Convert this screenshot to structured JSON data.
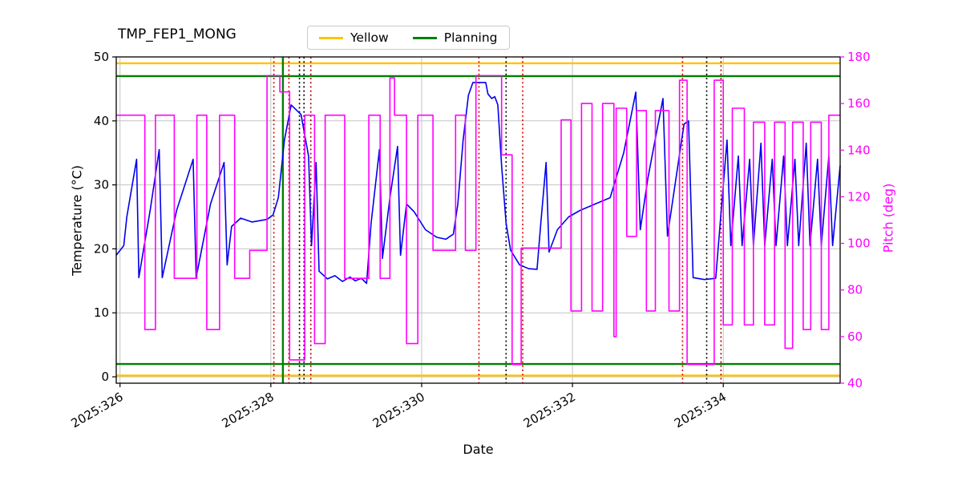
{
  "window": {
    "background": "#ffffff"
  },
  "chart_data": {
    "type": "line",
    "title": "TMP_FEP1_MONG",
    "xlabel": "Date",
    "ylabel_left": "Temperature (°C)",
    "ylabel_right": "Pitch (deg)",
    "xlim": [
      325.95,
      335.55
    ],
    "ylim_left": [
      -1,
      50
    ],
    "ylim_right": [
      40,
      180
    ],
    "grid": true,
    "legend_position": "upper center",
    "colors": {
      "temperature": "#0000EE",
      "pitch": "#FF00FF",
      "yellow_limit": "#FFC400",
      "planning_limit": "#008000",
      "grid": "#C3C3C3",
      "frame": "#000000"
    },
    "xticks": {
      "values": [
        326,
        328,
        330,
        332,
        334
      ],
      "labels": [
        "2025:326",
        "2025:328",
        "2025:330",
        "2025:332",
        "2025:334"
      ]
    },
    "yticks_left": [
      0,
      10,
      20,
      30,
      40,
      50
    ],
    "yticks_right": [
      40,
      60,
      80,
      100,
      120,
      140,
      160,
      180
    ],
    "legend": [
      {
        "label": "Yellow",
        "color": "#FFC400"
      },
      {
        "label": "Planning",
        "color": "#008000"
      }
    ],
    "hlines": [
      {
        "y": 49,
        "color": "#FFC400",
        "name": "yellow-high"
      },
      {
        "y": 0.2,
        "color": "#FFC400",
        "name": "yellow-low"
      },
      {
        "y": 47,
        "color": "#008000",
        "name": "planning-high"
      },
      {
        "y": 2,
        "color": "#008000",
        "name": "planning-low"
      }
    ],
    "vlines": [
      {
        "x": 328.04,
        "color": "#DD0000",
        "style": "dotted"
      },
      {
        "x": 328.16,
        "color": "#008000",
        "style": "solid"
      },
      {
        "x": 328.24,
        "color": "#DD0000",
        "style": "dotted"
      },
      {
        "x": 328.38,
        "color": "#000000",
        "style": "dotted"
      },
      {
        "x": 328.44,
        "color": "#000000",
        "style": "dotted"
      },
      {
        "x": 328.53,
        "color": "#A00000",
        "style": "dotted"
      },
      {
        "x": 330.76,
        "color": "#DD0000",
        "style": "dotted"
      },
      {
        "x": 331.12,
        "color": "#000000",
        "style": "dotted"
      },
      {
        "x": 331.34,
        "color": "#DD0000",
        "style": "dotted"
      },
      {
        "x": 333.46,
        "color": "#DD0000",
        "style": "dotted"
      },
      {
        "x": 333.78,
        "color": "#000000",
        "style": "dotted"
      },
      {
        "x": 333.97,
        "color": "#A00000",
        "style": "dotted"
      }
    ],
    "series": [
      {
        "name": "Temperature",
        "axis": "left",
        "color": "#0000EE",
        "style": "line",
        "points": [
          [
            325.95,
            19
          ],
          [
            326.05,
            20.5
          ],
          [
            326.09,
            25
          ],
          [
            326.22,
            34
          ],
          [
            326.25,
            15.5
          ],
          [
            326.4,
            26
          ],
          [
            326.52,
            35.5
          ],
          [
            326.56,
            15.5
          ],
          [
            326.75,
            26
          ],
          [
            326.97,
            34
          ],
          [
            327.01,
            15.5
          ],
          [
            327.2,
            27
          ],
          [
            327.38,
            33.5
          ],
          [
            327.42,
            17.5
          ],
          [
            327.48,
            23.5
          ],
          [
            327.6,
            24.8
          ],
          [
            327.75,
            24.2
          ],
          [
            327.95,
            24.6
          ],
          [
            328.03,
            25.3
          ],
          [
            328.1,
            28
          ],
          [
            328.18,
            37
          ],
          [
            328.27,
            42.5
          ],
          [
            328.4,
            41
          ],
          [
            328.5,
            34.5
          ],
          [
            328.54,
            20.5
          ],
          [
            328.6,
            33.5
          ],
          [
            328.64,
            16.5
          ],
          [
            328.75,
            15.3
          ],
          [
            328.85,
            15.8
          ],
          [
            328.95,
            14.9
          ],
          [
            329.05,
            15.6
          ],
          [
            329.12,
            15
          ],
          [
            329.2,
            15.4
          ],
          [
            329.27,
            14.6
          ],
          [
            329.33,
            24
          ],
          [
            329.44,
            35.5
          ],
          [
            329.48,
            18.5
          ],
          [
            329.58,
            28
          ],
          [
            329.68,
            36
          ],
          [
            329.72,
            19
          ],
          [
            329.8,
            27
          ],
          [
            329.9,
            25.8
          ],
          [
            330.05,
            23
          ],
          [
            330.2,
            21.8
          ],
          [
            330.32,
            21.5
          ],
          [
            330.42,
            22.3
          ],
          [
            330.48,
            27
          ],
          [
            330.55,
            37
          ],
          [
            330.62,
            44
          ],
          [
            330.68,
            46
          ],
          [
            330.85,
            46
          ],
          [
            330.88,
            44.2
          ],
          [
            330.93,
            43.5
          ],
          [
            330.97,
            43.8
          ],
          [
            331.01,
            42.5
          ],
          [
            331.06,
            33
          ],
          [
            331.12,
            24
          ],
          [
            331.18,
            19.8
          ],
          [
            331.3,
            17.5
          ],
          [
            331.42,
            16.9
          ],
          [
            331.53,
            16.8
          ],
          [
            331.58,
            24
          ],
          [
            331.65,
            33.5
          ],
          [
            331.69,
            19.5
          ],
          [
            331.8,
            23
          ],
          [
            331.95,
            25
          ],
          [
            332.1,
            26
          ],
          [
            332.3,
            27
          ],
          [
            332.5,
            28
          ],
          [
            332.68,
            35
          ],
          [
            332.84,
            44.5
          ],
          [
            332.9,
            23
          ],
          [
            333.0,
            31
          ],
          [
            333.12,
            38.5
          ],
          [
            333.2,
            43.5
          ],
          [
            333.26,
            22
          ],
          [
            333.36,
            30
          ],
          [
            333.48,
            39.5
          ],
          [
            333.54,
            40
          ],
          [
            333.6,
            15.5
          ],
          [
            333.75,
            15.2
          ],
          [
            333.9,
            15.4
          ],
          [
            333.98,
            27
          ],
          [
            334.05,
            37
          ],
          [
            334.1,
            20.5
          ],
          [
            334.2,
            34.5
          ],
          [
            334.25,
            20.5
          ],
          [
            334.35,
            34
          ],
          [
            334.4,
            20.5
          ],
          [
            334.5,
            36.5
          ],
          [
            334.55,
            20.5
          ],
          [
            334.65,
            34
          ],
          [
            334.7,
            20.5
          ],
          [
            334.8,
            34.5
          ],
          [
            334.85,
            20.5
          ],
          [
            334.95,
            34
          ],
          [
            335.0,
            20.5
          ],
          [
            335.1,
            36.5
          ],
          [
            335.15,
            20.5
          ],
          [
            335.25,
            34
          ],
          [
            335.3,
            20.5
          ],
          [
            335.4,
            34.5
          ],
          [
            335.45,
            20.5
          ],
          [
            335.55,
            33
          ]
        ]
      },
      {
        "name": "Pitch",
        "axis": "right",
        "color": "#FF00FF",
        "style": "steps",
        "segments": [
          [
            325.95,
            326.33,
            155
          ],
          [
            326.33,
            326.47,
            63
          ],
          [
            326.47,
            326.72,
            155
          ],
          [
            326.72,
            327.02,
            85
          ],
          [
            327.02,
            327.15,
            155
          ],
          [
            327.15,
            327.32,
            63
          ],
          [
            327.32,
            327.52,
            155
          ],
          [
            327.52,
            327.72,
            85
          ],
          [
            327.72,
            327.95,
            97
          ],
          [
            327.95,
            328.12,
            172
          ],
          [
            328.12,
            328.25,
            165
          ],
          [
            328.25,
            328.45,
            50
          ],
          [
            328.45,
            328.58,
            155
          ],
          [
            328.58,
            328.72,
            57
          ],
          [
            328.72,
            328.98,
            155
          ],
          [
            328.98,
            329.3,
            85
          ],
          [
            329.3,
            329.45,
            155
          ],
          [
            329.45,
            329.58,
            85
          ],
          [
            329.58,
            329.64,
            171
          ],
          [
            329.64,
            329.8,
            155
          ],
          [
            329.8,
            329.95,
            57
          ],
          [
            329.95,
            330.15,
            155
          ],
          [
            330.15,
            330.45,
            97
          ],
          [
            330.45,
            330.58,
            155
          ],
          [
            330.58,
            330.72,
            97
          ],
          [
            330.72,
            331.06,
            172
          ],
          [
            331.06,
            331.2,
            138
          ],
          [
            331.2,
            331.32,
            48
          ],
          [
            331.32,
            331.85,
            98
          ],
          [
            331.85,
            331.98,
            153
          ],
          [
            331.98,
            332.12,
            71
          ],
          [
            332.12,
            332.26,
            160
          ],
          [
            332.26,
            332.4,
            71
          ],
          [
            332.4,
            332.55,
            160
          ],
          [
            332.55,
            332.58,
            60
          ],
          [
            332.58,
            332.72,
            158
          ],
          [
            332.72,
            332.85,
            103
          ],
          [
            332.85,
            332.98,
            157
          ],
          [
            332.98,
            333.1,
            71
          ],
          [
            333.1,
            333.28,
            157
          ],
          [
            333.28,
            333.42,
            71
          ],
          [
            333.42,
            333.52,
            170
          ],
          [
            333.52,
            333.88,
            48
          ],
          [
            333.88,
            334.0,
            170
          ],
          [
            334.0,
            334.12,
            65
          ],
          [
            334.12,
            334.28,
            158
          ],
          [
            334.28,
            334.4,
            65
          ],
          [
            334.4,
            334.55,
            152
          ],
          [
            334.55,
            334.68,
            65
          ],
          [
            334.68,
            334.82,
            152
          ],
          [
            334.82,
            334.92,
            55
          ],
          [
            334.92,
            335.06,
            152
          ],
          [
            335.06,
            335.16,
            63
          ],
          [
            335.16,
            335.3,
            152
          ],
          [
            335.3,
            335.4,
            63
          ],
          [
            335.4,
            335.55,
            155
          ]
        ]
      }
    ]
  }
}
